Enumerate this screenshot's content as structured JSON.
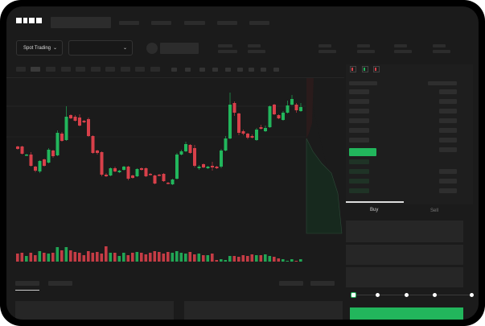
{
  "brand": {
    "logo_text": "OKX"
  },
  "market_selector": {
    "label": "Spot Trading",
    "caret": "⌄"
  },
  "pair_selector": {
    "caret": "⌄"
  },
  "trade_panel": {
    "tabs": [
      "Buy",
      "Sell"
    ],
    "active_tab": "Buy",
    "slider_percent": 0
  },
  "colors": {
    "up": "#22b65c",
    "down": "#d8404a",
    "background": "#1b1b1b",
    "accent": "#22b65c"
  },
  "orderbook_icons": [
    "orderbook-both-icon",
    "orderbook-bids-icon",
    "orderbook-asks-icon"
  ],
  "chart_data": {
    "type": "candlestick",
    "ohlc": [
      [
        68,
        65,
        69,
        64
      ],
      [
        68,
        59,
        69,
        58
      ],
      [
        57,
        58,
        59,
        56
      ],
      [
        58,
        44,
        61,
        43
      ],
      [
        43,
        38,
        44,
        36
      ],
      [
        37,
        50,
        51,
        35
      ],
      [
        52,
        44,
        53,
        43
      ],
      [
        48,
        64,
        66,
        47
      ],
      [
        63,
        56,
        64,
        54
      ],
      [
        57,
        85,
        88,
        56
      ],
      [
        84,
        75,
        86,
        74
      ],
      [
        76,
        105,
        118,
        75
      ],
      [
        107,
        103,
        108,
        102
      ],
      [
        105,
        100,
        107,
        99
      ],
      [
        104,
        94,
        108,
        93
      ],
      [
        100,
        98,
        101,
        97
      ],
      [
        102,
        81,
        104,
        80
      ],
      [
        81,
        60,
        82,
        59
      ],
      [
        63,
        60,
        64,
        58
      ],
      [
        61,
        33,
        62,
        31
      ],
      [
        33,
        31,
        35,
        30
      ],
      [
        32,
        41,
        42,
        31
      ],
      [
        41,
        37,
        43,
        36
      ],
      [
        36,
        38,
        39,
        35
      ],
      [
        39,
        43,
        44,
        38
      ],
      [
        43,
        28,
        44,
        26
      ],
      [
        32,
        29,
        33,
        28
      ],
      [
        31,
        40,
        41,
        30
      ],
      [
        41,
        39,
        42,
        38
      ],
      [
        41,
        31,
        42,
        30
      ],
      [
        34,
        33,
        35,
        32
      ],
      [
        32,
        22,
        33,
        21
      ],
      [
        33,
        32,
        34,
        31
      ],
      [
        34,
        25,
        35,
        24
      ],
      [
        23,
        22,
        24,
        21
      ],
      [
        21,
        27,
        28,
        20
      ],
      [
        28,
        58,
        60,
        27
      ],
      [
        58,
        62,
        64,
        57
      ],
      [
        62,
        71,
        74,
        61
      ],
      [
        70,
        60,
        71,
        59
      ],
      [
        66,
        44,
        70,
        42
      ],
      [
        41,
        43,
        45,
        39
      ],
      [
        46,
        42,
        47,
        41
      ],
      [
        41,
        43,
        44,
        40
      ],
      [
        44,
        42,
        49,
        38
      ],
      [
        43,
        41,
        44,
        40
      ],
      [
        43,
        63,
        65,
        41
      ],
      [
        63,
        78,
        81,
        62
      ],
      [
        78,
        120,
        135,
        77
      ],
      [
        122,
        110,
        124,
        106
      ],
      [
        109,
        85,
        110,
        82
      ],
      [
        87,
        84,
        89,
        82
      ],
      [
        84,
        79,
        85,
        77
      ],
      [
        81,
        79,
        83,
        78
      ],
      [
        76,
        89,
        91,
        75
      ],
      [
        92,
        90,
        95,
        89
      ],
      [
        87,
        91,
        94,
        86
      ],
      [
        92,
        118,
        119,
        91
      ],
      [
        120,
        108,
        121,
        107
      ],
      [
        107,
        103,
        108,
        102
      ],
      [
        101,
        110,
        112,
        100
      ],
      [
        110,
        119,
        125,
        109
      ],
      [
        120,
        127,
        132,
        119
      ],
      [
        120,
        113,
        122,
        110
      ],
      [
        112,
        117,
        122,
        111
      ]
    ],
    "volume": [
      10,
      11,
      7,
      11,
      8,
      13,
      11,
      10,
      11,
      18,
      14,
      18,
      14,
      12,
      11,
      8,
      13,
      11,
      12,
      10,
      19,
      11,
      11,
      7,
      11,
      8,
      11,
      12,
      11,
      9,
      11,
      13,
      12,
      10,
      12,
      11,
      13,
      11,
      10,
      12,
      9,
      10,
      8,
      8,
      10,
      2,
      3,
      2,
      7,
      7,
      6,
      8,
      7,
      9,
      8,
      8,
      9,
      7,
      6,
      4,
      3,
      1,
      3,
      1,
      3
    ],
    "grid": true
  }
}
